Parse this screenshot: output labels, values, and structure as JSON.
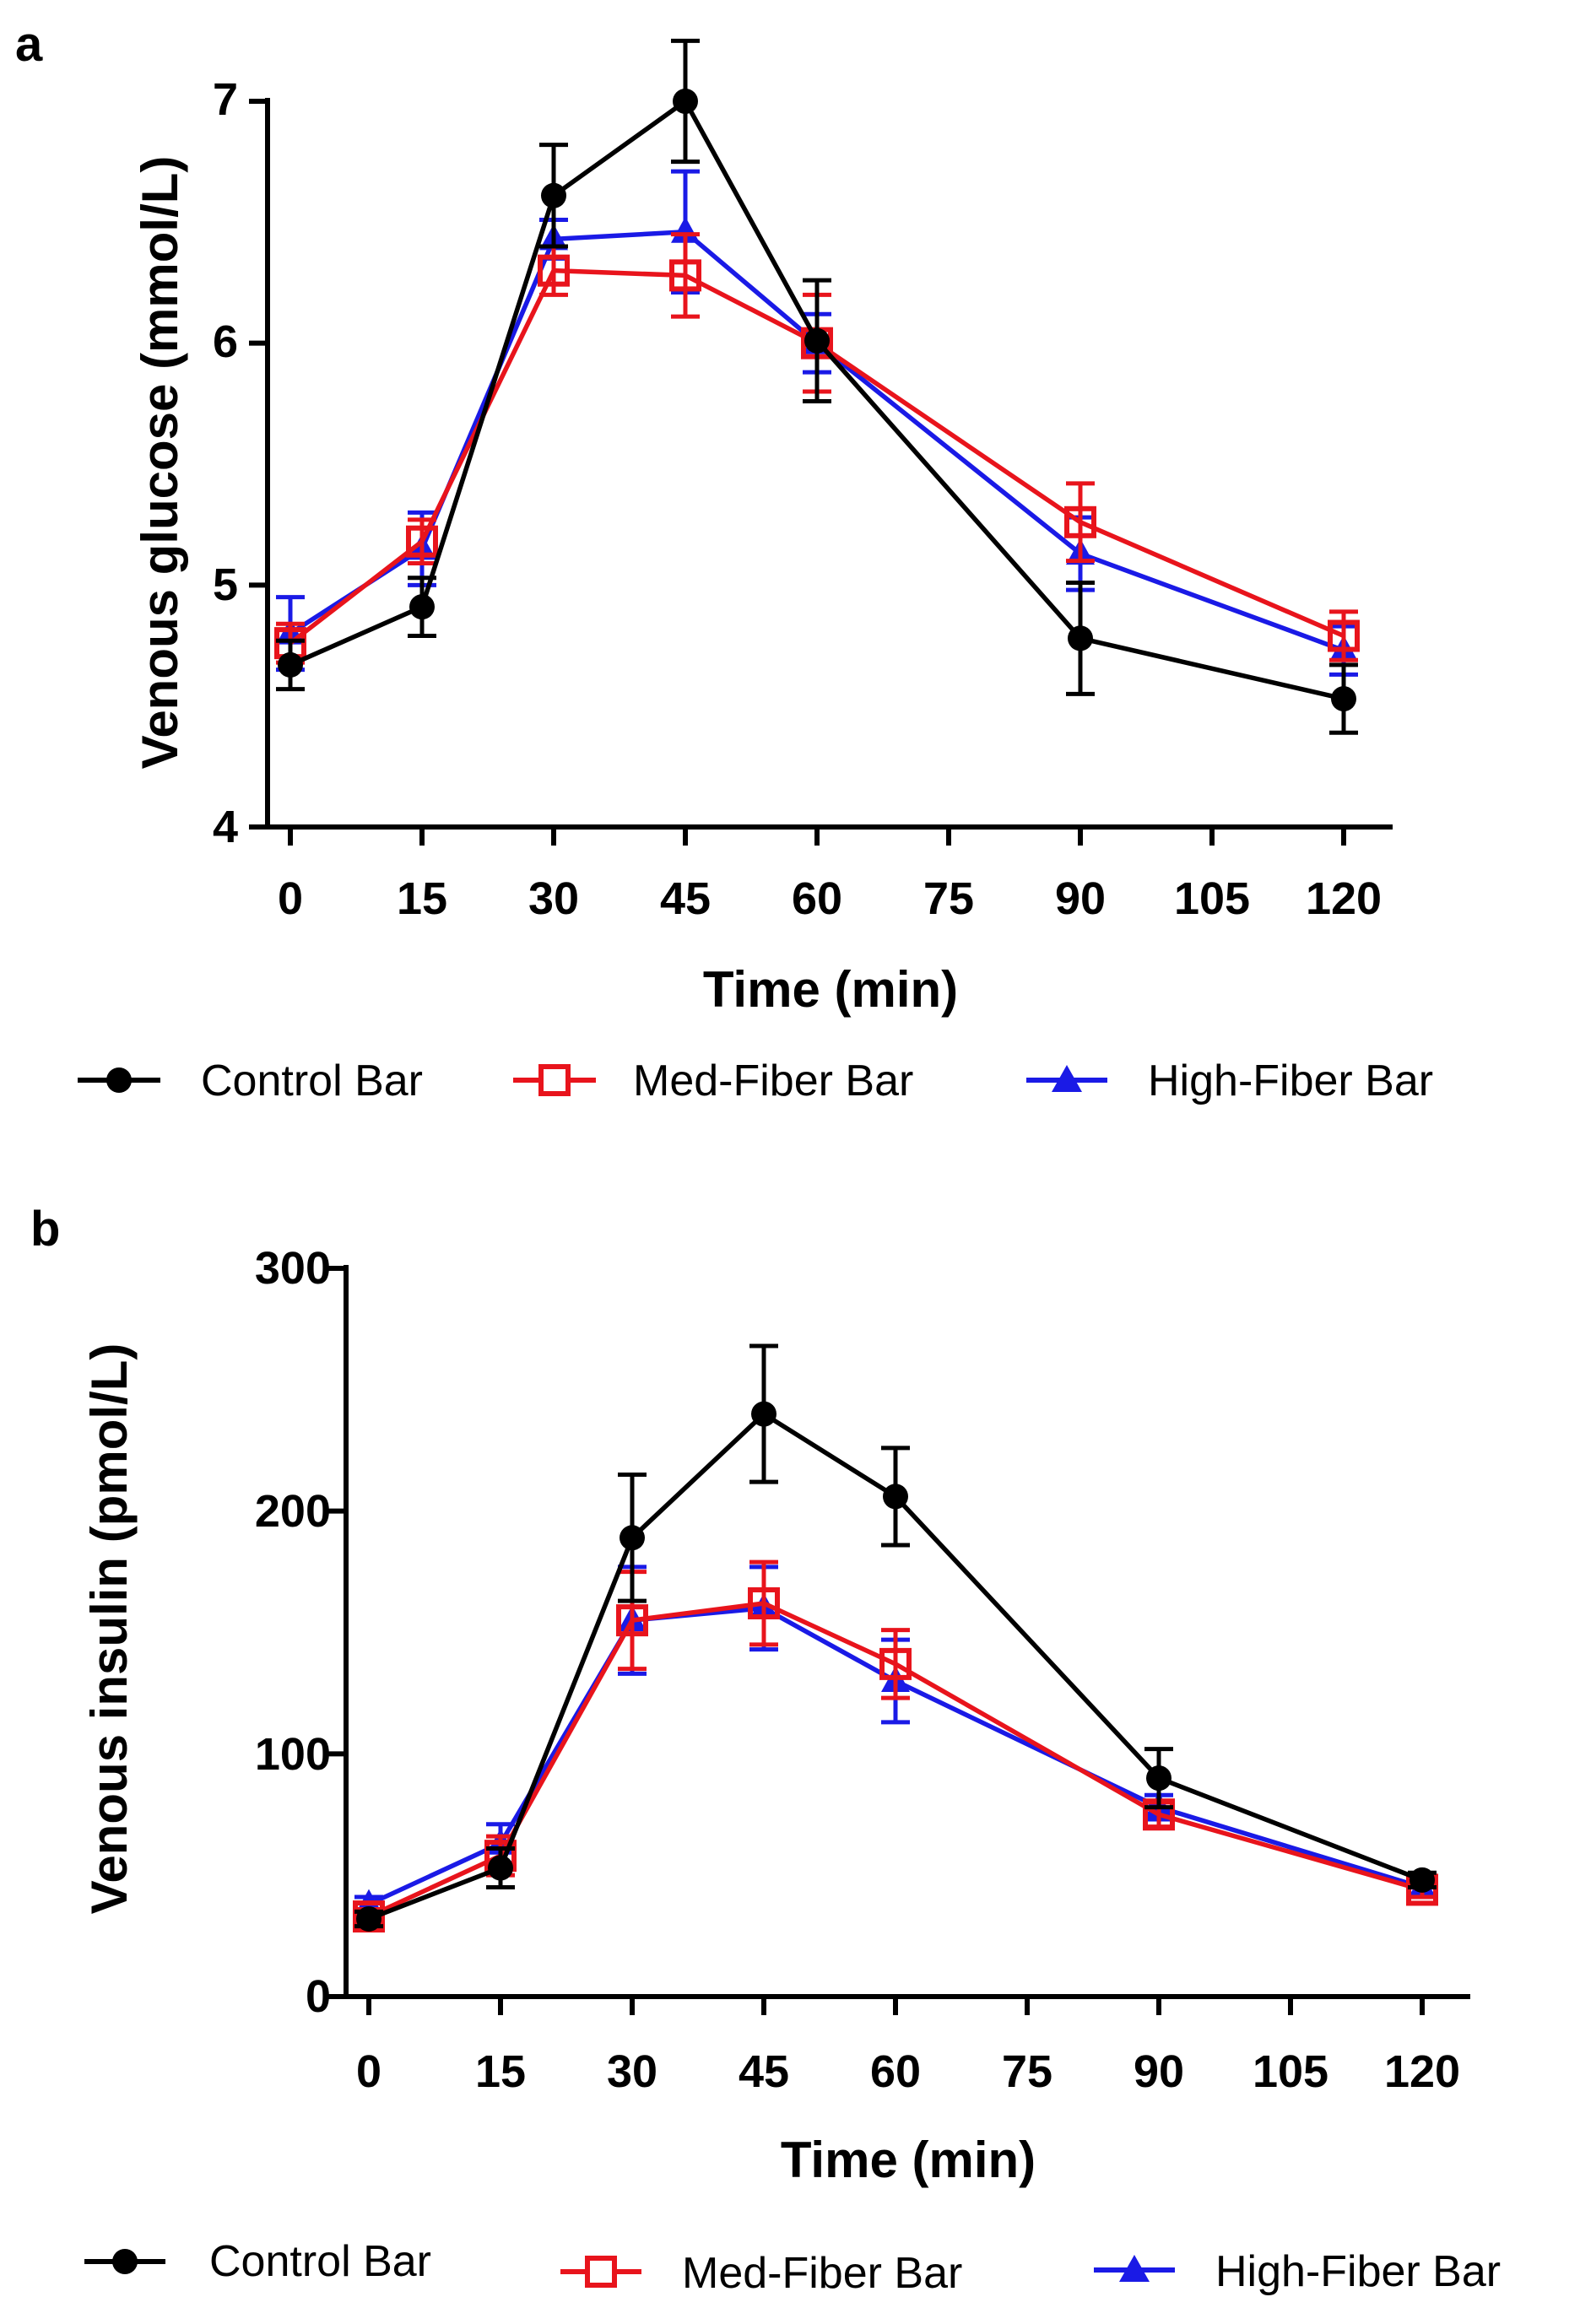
{
  "chart_data": [
    {
      "type": "line",
      "panel": "a",
      "title": "",
      "xlabel": "Time (min)",
      "ylabel": "Venous glucose (mmol/L)",
      "xlim": [
        0,
        120
      ],
      "ylim": [
        4,
        7
      ],
      "xticks": [
        0,
        15,
        30,
        45,
        60,
        75,
        90,
        105,
        120
      ],
      "yticks": [
        4,
        5,
        6,
        7
      ],
      "grid": false,
      "legend_position": "bottom",
      "x": [
        0,
        15,
        30,
        45,
        60,
        90,
        120
      ],
      "series": [
        {
          "name": "Control Bar",
          "color": "#000000",
          "marker": "circle",
          "values": [
            4.67,
            4.91,
            6.61,
            7.0,
            6.01,
            4.78,
            4.53
          ],
          "errors": [
            0.1,
            0.12,
            0.21,
            0.25,
            0.25,
            0.23,
            0.14
          ]
        },
        {
          "name": "Med-Fiber Bar",
          "color": "#e8141c",
          "marker": "square-open",
          "values": [
            4.76,
            5.18,
            6.3,
            6.28,
            6.0,
            5.26,
            4.79
          ],
          "errors": [
            0.08,
            0.09,
            0.1,
            0.17,
            0.2,
            0.16,
            0.1
          ]
        },
        {
          "name": "High-Fiber Bar",
          "color": "#1a1ae6",
          "marker": "triangle",
          "values": [
            4.8,
            5.15,
            6.43,
            6.46,
            6.0,
            5.13,
            4.73
          ],
          "errors": [
            0.15,
            0.15,
            0.08,
            0.25,
            0.12,
            0.15,
            0.1
          ]
        }
      ]
    },
    {
      "type": "line",
      "panel": "b",
      "title": "",
      "xlabel": "Time (min)",
      "ylabel": "Venous insulin (pmol/L)",
      "xlim": [
        0,
        120
      ],
      "ylim": [
        0,
        300
      ],
      "xticks": [
        0,
        15,
        30,
        45,
        60,
        75,
        90,
        105,
        120
      ],
      "yticks": [
        0,
        100,
        200,
        300
      ],
      "grid": false,
      "legend_position": "bottom",
      "x": [
        0,
        15,
        30,
        45,
        60,
        90,
        120
      ],
      "series": [
        {
          "name": "Control Bar",
          "color": "#000000",
          "marker": "circle",
          "values": [
            32,
            53,
            189,
            240,
            206,
            90,
            48
          ],
          "errors": [
            3,
            8,
            26,
            28,
            20,
            12,
            3
          ]
        },
        {
          "name": "Med-Fiber Bar",
          "color": "#e8141c",
          "marker": "square-open",
          "values": [
            33,
            58,
            155,
            162,
            137,
            75,
            44
          ],
          "errors": [
            3,
            8,
            20,
            17,
            14,
            5,
            3
          ]
        },
        {
          "name": "High-Fiber Bar",
          "color": "#1a1ae6",
          "marker": "triangle",
          "values": [
            38,
            63,
            155,
            160,
            130,
            78,
            45
          ],
          "errors": [
            3,
            8,
            22,
            17,
            17,
            5,
            3
          ]
        }
      ]
    }
  ]
}
